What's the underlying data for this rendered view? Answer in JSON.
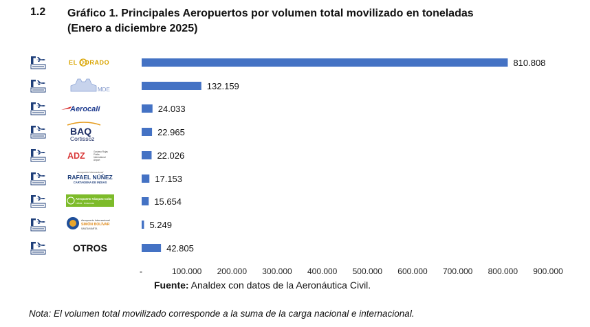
{
  "header": {
    "section": "1.2",
    "title_line1": "Gráfico 1. Principales Aeropuertos por volumen total movilizado en toneladas",
    "title_line2": "(Enero a diciembre 2025)"
  },
  "chart_data": {
    "type": "bar",
    "orientation": "horizontal",
    "categories": [
      "EL DORADO",
      "MDE",
      "Aerocali",
      "BAQ Cortissoz",
      "ADZ",
      "RAFAEL NÚÑEZ",
      "Aeropuerto Vásquez Cobo",
      "SIMÓN BOLÍVAR",
      "OTROS"
    ],
    "values": [
      810808,
      132159,
      24033,
      22965,
      22026,
      17153,
      15654,
      5249,
      42805
    ],
    "value_labels": [
      "810.808",
      "132.159",
      "24.033",
      "22.965",
      "22.026",
      "17.153",
      "15.654",
      "5.249",
      "42.805"
    ],
    "xlim": [
      0,
      900000
    ],
    "xticks": [
      "-",
      "100.000",
      "200.000",
      "300.000",
      "400.000",
      "500.000",
      "600.000",
      "700.000",
      "800.000",
      "900.000"
    ],
    "bar_color": "#4472c4",
    "grid": false,
    "legend": "none",
    "logo_texts": {
      "eldorado": "EL DORADO",
      "mde": "MDE",
      "aerocali": "Aerocali",
      "baq": "BAQ",
      "baq_sub": "Cortissoz",
      "adz": "ADZ",
      "adz_sub1": "Gustavo Rojas",
      "adz_sub2": "Pinilla",
      "adz_sub3": "International",
      "adz_sub4": "Airport",
      "rn_top": "Aeropuerto Internacional",
      "rn_main": "RAFAEL NÚÑEZ",
      "rn_sub": "CARTAGENA DE INDIAS",
      "vc_main": "Aeropuerto Vásquez Cobo",
      "vc_sub": "Leticia · Amazonas",
      "sb_top": "Aeropuerto Internacional",
      "sb_main": "SIMÓN BOLÍVAR",
      "sb_sub": "SANTA MARTA",
      "otros": "OTROS"
    }
  },
  "footer": {
    "source_label": "Fuente:",
    "source_text": " Analdex con datos de la Aeronáutica Civil.",
    "note": "Nota: El volumen total movilizado corresponde a la suma de la carga nacional e internacional."
  }
}
